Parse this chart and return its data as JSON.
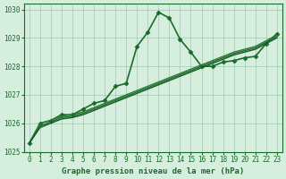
{
  "title": "Graphe pression niveau de la mer (hPa)",
  "xlabel_hours": [
    0,
    1,
    2,
    3,
    4,
    5,
    6,
    7,
    8,
    9,
    10,
    11,
    12,
    13,
    14,
    15,
    16,
    17,
    18,
    19,
    20,
    21,
    22,
    23
  ],
  "ylim": [
    1025.0,
    1030.2
  ],
  "yticks": [
    1025,
    1026,
    1027,
    1028,
    1029,
    1030
  ],
  "bg_color": "#d6eedd",
  "grid_color": "#a0c8b0",
  "series": [
    {
      "x": [
        0,
        1,
        2,
        3,
        4,
        5,
        6,
        7,
        8,
        9,
        10,
        11,
        12,
        13,
        14,
        15,
        16,
        17,
        18,
        19,
        20,
        21,
        22,
        23
      ],
      "y": [
        1025.3,
        1026.0,
        1026.1,
        1026.3,
        1026.3,
        1026.5,
        1026.7,
        1026.8,
        1027.3,
        1027.4,
        1028.7,
        1029.2,
        1029.9,
        1029.7,
        1028.95,
        1028.5,
        1028.0,
        1028.0,
        1028.15,
        1028.2,
        1028.3,
        1028.35,
        1028.8,
        1029.15
      ],
      "marker": "D",
      "markersize": 2.5,
      "linewidth": 1.2,
      "color": "#1a6b2a"
    },
    {
      "x": [
        0,
        1,
        2,
        3,
        4,
        5,
        6,
        7,
        8,
        9,
        10,
        11,
        12,
        13,
        14,
        15,
        16,
        17,
        18,
        19,
        20,
        21,
        22,
        23
      ],
      "y": [
        1025.3,
        1026.0,
        1026.1,
        1026.25,
        1026.3,
        1026.4,
        1026.55,
        1026.7,
        1026.85,
        1027.0,
        1027.15,
        1027.3,
        1027.45,
        1027.6,
        1027.75,
        1027.9,
        1028.05,
        1028.2,
        1028.35,
        1028.5,
        1028.6,
        1028.7,
        1028.9,
        1029.1
      ],
      "marker": null,
      "markersize": 0,
      "linewidth": 1.0,
      "color": "#2d7a3a"
    },
    {
      "x": [
        0,
        1,
        2,
        3,
        4,
        5,
        6,
        7,
        8,
        9,
        10,
        11,
        12,
        13,
        14,
        15,
        16,
        17,
        18,
        19,
        20,
        21,
        22,
        23
      ],
      "y": [
        1025.3,
        1025.9,
        1026.05,
        1026.2,
        1026.25,
        1026.35,
        1026.5,
        1026.65,
        1026.8,
        1026.95,
        1027.1,
        1027.25,
        1027.4,
        1027.55,
        1027.7,
        1027.85,
        1028.0,
        1028.15,
        1028.3,
        1028.45,
        1028.55,
        1028.65,
        1028.85,
        1029.05
      ],
      "marker": null,
      "markersize": 0,
      "linewidth": 1.0,
      "color": "#1e6b2a"
    },
    {
      "x": [
        0,
        1,
        2,
        3,
        4,
        5,
        6,
        7,
        8,
        9,
        10,
        11,
        12,
        13,
        14,
        15,
        16,
        17,
        18,
        19,
        20,
        21,
        22,
        23
      ],
      "y": [
        1025.3,
        1025.85,
        1026.0,
        1026.15,
        1026.2,
        1026.3,
        1026.45,
        1026.6,
        1026.75,
        1026.9,
        1027.05,
        1027.2,
        1027.35,
        1027.5,
        1027.65,
        1027.8,
        1027.95,
        1028.1,
        1028.25,
        1028.4,
        1028.5,
        1028.6,
        1028.8,
        1029.0
      ],
      "marker": null,
      "markersize": 0,
      "linewidth": 1.0,
      "color": "#155a22"
    }
  ],
  "xtick_fontsize": 5.5,
  "ytick_fontsize": 5.5,
  "xlabel_fontsize": 6.5,
  "label_color": "#1a6b2a"
}
